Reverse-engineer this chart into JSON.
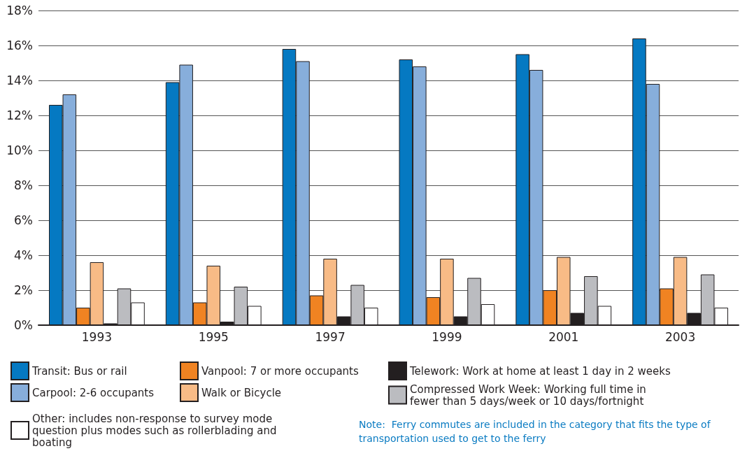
{
  "chart_data": {
    "type": "bar",
    "categories": [
      "1993",
      "1995",
      "1997",
      "1999",
      "2001",
      "2003"
    ],
    "series": [
      {
        "name": "Transit: Bus or rail",
        "color": "#0579c2",
        "values": [
          12.6,
          13.9,
          15.8,
          15.2,
          15.5,
          16.4
        ]
      },
      {
        "name": "Carpool: 2-6 occupants",
        "color": "#87aedb",
        "values": [
          13.2,
          14.9,
          15.1,
          14.8,
          14.6,
          13.8
        ]
      },
      {
        "name": "Vanpool: 7 or more occupants",
        "color": "#f08322",
        "values": [
          1.0,
          1.3,
          1.7,
          1.6,
          2.0,
          2.1
        ]
      },
      {
        "name": "Walk or Bicycle",
        "color": "#f8bb86",
        "values": [
          3.6,
          3.4,
          3.8,
          3.8,
          3.9,
          3.9
        ]
      },
      {
        "name": "Telework: Work at home at least 1 day in 2 weeks",
        "color": "#231f20",
        "values": [
          0.1,
          0.2,
          0.5,
          0.5,
          0.7,
          0.7
        ]
      },
      {
        "name": "Compressed Work Week: Working full time in fewer than 5 days/week or 10 days/fortnight",
        "color": "#bbbcc0",
        "values": [
          2.1,
          2.2,
          2.3,
          2.7,
          2.8,
          2.9
        ]
      },
      {
        "name": "Other: includes non-response to survey mode question plus modes such as rollerblading and boating",
        "color": "#ffffff",
        "values": [
          1.3,
          1.1,
          1.0,
          1.2,
          1.1,
          1.0
        ]
      }
    ],
    "ylim": [
      0,
      18
    ],
    "yticks": [
      {
        "value": 0,
        "label": "0%"
      },
      {
        "value": 2,
        "label": "2%"
      },
      {
        "value": 4,
        "label": "4%"
      },
      {
        "value": 6,
        "label": "6%"
      },
      {
        "value": 8,
        "label": "8%"
      },
      {
        "value": 10,
        "label": "10%"
      },
      {
        "value": 12,
        "label": "12%"
      },
      {
        "value": 14,
        "label": "14%"
      },
      {
        "value": 16,
        "label": "16%"
      },
      {
        "value": 18,
        "label": "18%"
      }
    ],
    "grid": "y",
    "legend": "bottom",
    "annotations": [
      "Note:  Ferry commutes are included in the category that fits the type of transportation used to get to the ferry"
    ]
  }
}
